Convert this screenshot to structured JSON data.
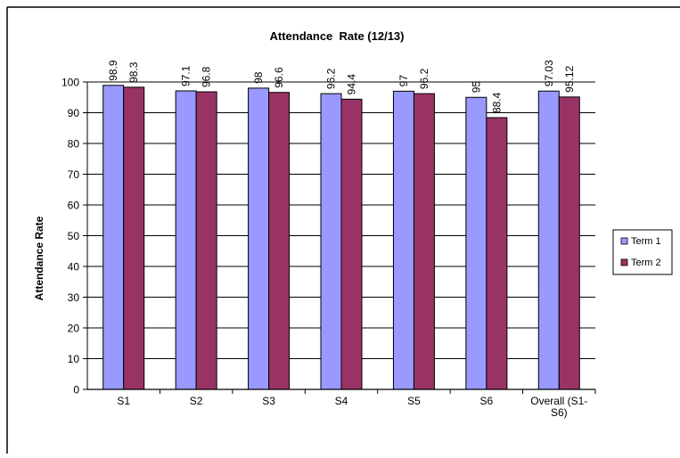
{
  "chart_data": {
    "type": "bar",
    "title": "Attendance  Rate (12/13)",
    "xlabel": "",
    "ylabel": "Attendance Rate",
    "categories": [
      "S1",
      "S2",
      "S3",
      "S4",
      "S5",
      "S6",
      "Overall (S1-S6)"
    ],
    "category_lines": [
      [
        "S1"
      ],
      [
        "S2"
      ],
      [
        "S3"
      ],
      [
        "S4"
      ],
      [
        "S5"
      ],
      [
        "S6"
      ],
      [
        "Overall (S1-",
        "S6)"
      ]
    ],
    "series": [
      {
        "name": "Term 1",
        "values": [
          98.9,
          97.1,
          98,
          96.2,
          97,
          95,
          97.03
        ],
        "labels": [
          "98.9",
          "97.1",
          "98",
          "96.2",
          "97",
          "95",
          "97.03"
        ],
        "color": "#9999ff"
      },
      {
        "name": "Term 2",
        "values": [
          98.3,
          96.8,
          96.6,
          94.4,
          96.2,
          88.4,
          95.12
        ],
        "labels": [
          "98.3",
          "96.8",
          "96.6",
          "94.4",
          "96.2",
          "88.4",
          "95.12"
        ],
        "color": "#993366"
      }
    ],
    "ylim": [
      0,
      100
    ],
    "yticks": [
      0,
      10,
      20,
      30,
      40,
      50,
      60,
      70,
      80,
      90,
      100
    ],
    "grid": true,
    "legend_position": "right"
  }
}
